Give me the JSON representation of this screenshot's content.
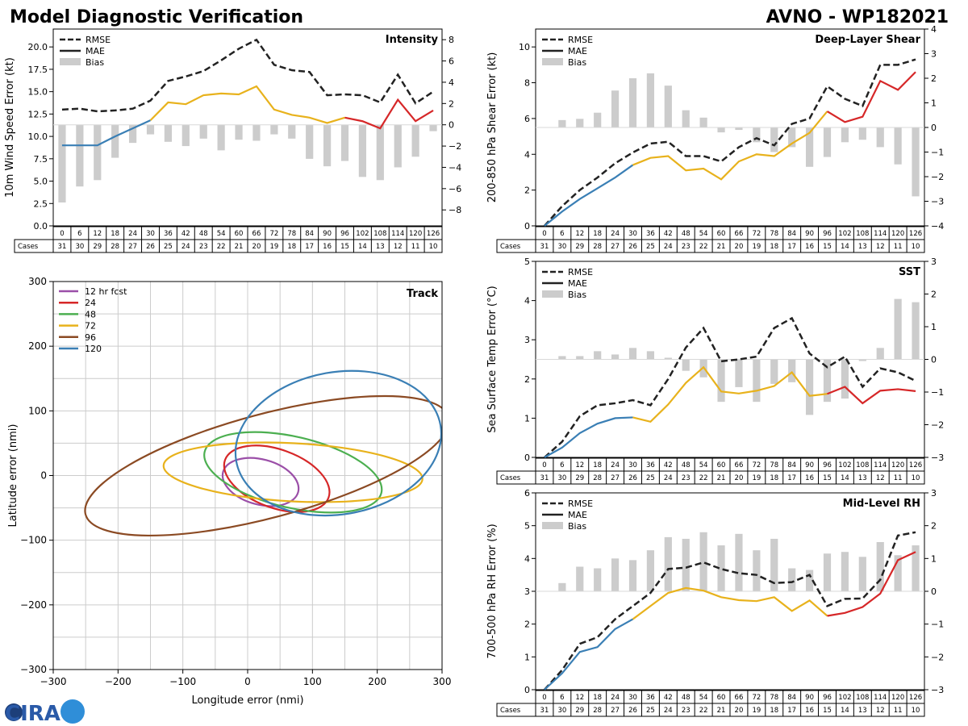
{
  "header": {
    "title": "Model Diagnostic Verification",
    "model_storm": "AVNO - WP182021"
  },
  "logo": {
    "text": "CIRA"
  },
  "colors": {
    "rmse": "#222222",
    "bias": "#cccccc",
    "seg_blue": "#3a7fb5",
    "seg_yellow": "#e8b21c",
    "seg_red": "#d62728",
    "ell_12": "#9b4fa8",
    "ell_24": "#d62728",
    "ell_48": "#4caf50",
    "ell_72": "#e8b21c",
    "ell_96": "#8b4a23",
    "ell_120": "#3a7fb5",
    "grid": "#cccccc"
  },
  "legend_labels": {
    "rmse": "RMSE",
    "mae": "MAE",
    "bias": "Bias"
  },
  "table": {
    "hours": [
      "0",
      "6",
      "12",
      "18",
      "24",
      "30",
      "36",
      "42",
      "48",
      "54",
      "60",
      "66",
      "72",
      "78",
      "84",
      "90",
      "96",
      "102",
      "108",
      "114",
      "120",
      "126"
    ],
    "cases_label": "Cases",
    "cases": [
      "31",
      "30",
      "29",
      "28",
      "27",
      "26",
      "25",
      "24",
      "23",
      "22",
      "21",
      "20",
      "19",
      "18",
      "17",
      "16",
      "15",
      "14",
      "13",
      "12",
      "11",
      "10"
    ]
  },
  "chart_data": [
    {
      "id": "intensity",
      "type": "line",
      "title": "Intensity",
      "ylabel": "10m Wind Speed Error (kt)",
      "xlabel": "",
      "ylim": [
        0,
        22
      ],
      "y_ticks": [
        "0.0",
        "2.5",
        "5.0",
        "7.5",
        "10.0",
        "12.5",
        "15.0",
        "17.5",
        "20.0"
      ],
      "y2lim": [
        -9.5,
        9
      ],
      "y2_ticks": [
        "−8",
        "−6",
        "−4",
        "−2",
        "0",
        "2",
        "4",
        "6",
        "8"
      ],
      "x": [
        0,
        6,
        12,
        18,
        24,
        30,
        36,
        42,
        48,
        54,
        60,
        66,
        72,
        78,
        84,
        90,
        96,
        102,
        108,
        114,
        120,
        126
      ],
      "series": [
        {
          "name": "RMSE",
          "values": [
            13.0,
            13.1,
            12.8,
            12.9,
            13.1,
            14.0,
            16.2,
            16.7,
            17.3,
            18.5,
            19.8,
            20.8,
            18.0,
            17.4,
            17.2,
            14.6,
            14.7,
            14.6,
            13.8,
            16.9,
            13.7,
            15.0
          ]
        },
        {
          "name": "MAE",
          "values": [
            9.0,
            9.0,
            9.0,
            10.0,
            10.9,
            11.8,
            13.8,
            13.6,
            14.6,
            14.8,
            14.7,
            15.6,
            13.0,
            12.4,
            12.1,
            11.5,
            12.1,
            11.7,
            10.9,
            14.1,
            11.7,
            12.9
          ]
        },
        {
          "name": "Bias",
          "values": [
            -7.3,
            -5.8,
            -5.2,
            -3.1,
            -1.7,
            -0.9,
            -1.6,
            -2.0,
            -1.3,
            -2.4,
            -1.4,
            -1.5,
            -0.9,
            -1.3,
            -3.2,
            -3.9,
            -3.4,
            -4.9,
            -5.2,
            -4.0,
            -3.0,
            -0.6
          ]
        }
      ]
    },
    {
      "id": "shear",
      "type": "line",
      "title": "Deep-Layer Shear",
      "ylabel": "200-850 hPa Shear Error (kt)",
      "xlabel": "",
      "ylim": [
        0,
        11
      ],
      "y_ticks": [
        "0",
        "2",
        "4",
        "6",
        "8",
        "10"
      ],
      "y2lim": [
        -4,
        4
      ],
      "y2_ticks": [
        "−4",
        "−3",
        "−2",
        "−1",
        "0",
        "1",
        "2",
        "3",
        "4"
      ],
      "x": [
        0,
        6,
        12,
        18,
        24,
        30,
        36,
        42,
        48,
        54,
        60,
        66,
        72,
        78,
        84,
        90,
        96,
        102,
        108,
        114,
        120,
        126
      ],
      "series": [
        {
          "name": "RMSE",
          "values": [
            0.0,
            1.1,
            2.0,
            2.7,
            3.5,
            4.1,
            4.6,
            4.7,
            3.9,
            3.9,
            3.6,
            4.4,
            4.9,
            4.5,
            5.7,
            6.0,
            7.8,
            7.1,
            6.7,
            9.0,
            9.0,
            9.3
          ]
        },
        {
          "name": "MAE",
          "values": [
            0.0,
            0.8,
            1.5,
            2.1,
            2.7,
            3.4,
            3.8,
            3.9,
            3.1,
            3.2,
            2.6,
            3.6,
            4.0,
            3.9,
            4.6,
            5.2,
            6.4,
            5.8,
            6.1,
            8.1,
            7.6,
            8.6
          ]
        },
        {
          "name": "Bias",
          "values": [
            0.0,
            0.3,
            0.35,
            0.6,
            1.5,
            2.0,
            2.2,
            1.7,
            0.7,
            0.4,
            -0.2,
            -0.1,
            -0.6,
            -1.0,
            -0.8,
            -1.6,
            -1.2,
            -0.6,
            -0.5,
            -0.8,
            -1.5,
            -2.8
          ]
        }
      ]
    },
    {
      "id": "sst",
      "type": "line",
      "title": "SST",
      "ylabel": "Sea Surface Temp Error (°C)",
      "xlabel": "",
      "ylim": [
        0,
        5
      ],
      "y_ticks": [
        "0",
        "1",
        "2",
        "3",
        "4",
        "5"
      ],
      "y2lim": [
        -3,
        3
      ],
      "y2_ticks": [
        "−3",
        "−2",
        "−1",
        "0",
        "1",
        "2",
        "3"
      ],
      "x": [
        0,
        6,
        12,
        18,
        24,
        30,
        36,
        42,
        48,
        54,
        60,
        66,
        72,
        78,
        84,
        90,
        96,
        102,
        108,
        114,
        120,
        126
      ],
      "series": [
        {
          "name": "RMSE",
          "values": [
            0.0,
            0.4,
            1.05,
            1.33,
            1.38,
            1.46,
            1.33,
            2.0,
            2.8,
            3.3,
            2.45,
            2.5,
            2.57,
            3.3,
            3.55,
            2.65,
            2.3,
            2.57,
            1.8,
            2.27,
            2.17,
            1.95
          ]
        },
        {
          "name": "MAE",
          "values": [
            0.0,
            0.25,
            0.62,
            0.86,
            1.0,
            1.02,
            0.91,
            1.35,
            1.9,
            2.3,
            1.68,
            1.63,
            1.7,
            1.82,
            2.17,
            1.57,
            1.62,
            1.8,
            1.38,
            1.7,
            1.74,
            1.69
          ]
        },
        {
          "name": "Bias",
          "values": [
            0.0,
            0.1,
            0.1,
            0.25,
            0.15,
            0.35,
            0.25,
            0.05,
            -0.35,
            -0.55,
            -1.3,
            -0.85,
            -1.3,
            -0.75,
            -0.7,
            -1.7,
            -1.3,
            -1.2,
            -0.05,
            0.35,
            1.85,
            1.75
          ]
        }
      ]
    },
    {
      "id": "rh",
      "type": "line",
      "title": "Mid-Level RH",
      "ylabel": "700-500 hPa RH Error (%)",
      "xlabel": "",
      "ylim": [
        0,
        6
      ],
      "y_ticks": [
        "0",
        "1",
        "2",
        "3",
        "4",
        "5",
        "6"
      ],
      "y2lim": [
        -3,
        3
      ],
      "y2_ticks": [
        "−3",
        "−2",
        "−1",
        "0",
        "1",
        "2",
        "3"
      ],
      "x": [
        0,
        6,
        12,
        18,
        24,
        30,
        36,
        42,
        48,
        54,
        60,
        66,
        72,
        78,
        84,
        90,
        96,
        102,
        108,
        114,
        120,
        126
      ],
      "series": [
        {
          "name": "RMSE",
          "values": [
            0.0,
            0.6,
            1.4,
            1.6,
            2.15,
            2.55,
            2.95,
            3.68,
            3.72,
            3.88,
            3.68,
            3.55,
            3.5,
            3.25,
            3.28,
            3.5,
            2.55,
            2.77,
            2.78,
            3.35,
            4.7,
            4.8
          ]
        },
        {
          "name": "MAE",
          "values": [
            0.0,
            0.5,
            1.15,
            1.3,
            1.85,
            2.15,
            2.55,
            2.95,
            3.1,
            3.02,
            2.82,
            2.73,
            2.7,
            2.82,
            2.4,
            2.72,
            2.25,
            2.34,
            2.52,
            2.93,
            3.95,
            4.2
          ]
        },
        {
          "name": "Bias",
          "values": [
            0.0,
            0.25,
            0.75,
            0.7,
            1.0,
            0.95,
            1.25,
            1.65,
            1.6,
            1.8,
            1.4,
            1.75,
            1.25,
            1.6,
            0.7,
            0.65,
            1.15,
            1.2,
            1.05,
            1.5,
            1.1,
            1.4
          ]
        }
      ]
    },
    {
      "id": "track",
      "type": "ellipse",
      "title": "Track",
      "xlabel": "Longitude error (nmi)",
      "ylabel": "Latitude error (nmi)",
      "xlim": [
        -300,
        300
      ],
      "ylim": [
        -300,
        300
      ],
      "x_ticks": [
        "−300",
        "−200",
        "−100",
        "0",
        "100",
        "200",
        "300"
      ],
      "y_ticks": [
        "−300",
        "−200",
        "−100",
        "0",
        "100",
        "200",
        "300"
      ],
      "series": [
        {
          "name": "12 hr fcst",
          "cx": 20,
          "cy": -10,
          "rx": 60,
          "ry": 35,
          "rot_deg": -15
        },
        {
          "name": "24",
          "cx": 45,
          "cy": -5,
          "rx": 85,
          "ry": 45,
          "rot_deg": -20
        },
        {
          "name": "48",
          "cx": 70,
          "cy": 5,
          "rx": 140,
          "ry": 55,
          "rot_deg": -13
        },
        {
          "name": "72",
          "cx": 70,
          "cy": 5,
          "rx": 200,
          "ry": 45,
          "rot_deg": -3
        },
        {
          "name": "96",
          "cx": 30,
          "cy": 15,
          "rx": 290,
          "ry": 80,
          "rot_deg": 15
        },
        {
          "name": "120",
          "cx": 140,
          "cy": 50,
          "rx": 160,
          "ry": 110,
          "rot_deg": 10
        }
      ]
    }
  ]
}
